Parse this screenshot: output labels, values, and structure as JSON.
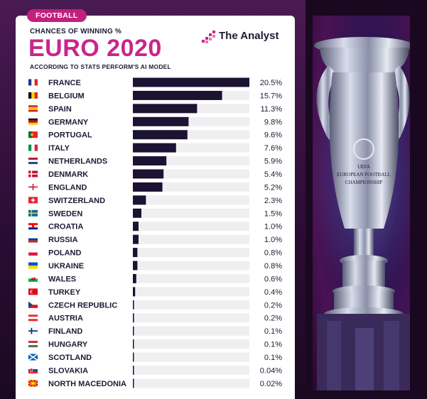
{
  "header": {
    "tag": "FOOTBALL",
    "kicker": "CHANCES OF WINNING %",
    "title": "EURO 2020",
    "subtitle": "ACCORDING TO STATS PERFORM'S AI MODEL",
    "brand": "The Analyst"
  },
  "trophy": {
    "line1": "UEFA",
    "line2": "EUROPEAN FOOTBALL",
    "line3": "CHAMPIONSHIP"
  },
  "colors": {
    "accent": "#c8268b",
    "bar": "#1c1333",
    "track": "#efeff1",
    "text": "#1c1b34"
  },
  "chart_data": {
    "type": "bar",
    "orientation": "horizontal",
    "categories": [
      "FRANCE",
      "BELGIUM",
      "SPAIN",
      "GERMANY",
      "PORTUGAL",
      "ITALY",
      "NETHERLANDS",
      "DENMARK",
      "ENGLAND",
      "SWITZERLAND",
      "SWEDEN",
      "CROATIA",
      "RUSSIA",
      "POLAND",
      "UKRAINE",
      "WALES",
      "TURKEY",
      "CZECH REPUBLIC",
      "AUSTRIA",
      "FINLAND",
      "HUNGARY",
      "SCOTLAND",
      "SLOVAKIA",
      "NORTH MACEDONIA"
    ],
    "values": [
      20.5,
      15.7,
      11.3,
      9.8,
      9.6,
      7.6,
      5.9,
      5.4,
      5.2,
      2.3,
      1.5,
      1.0,
      1.0,
      0.8,
      0.8,
      0.6,
      0.4,
      0.2,
      0.2,
      0.1,
      0.1,
      0.1,
      0.04,
      0.02
    ],
    "value_labels": [
      "20.5%",
      "15.7%",
      "11.3%",
      "9.8%",
      "9.6%",
      "7.6%",
      "5.9%",
      "5.4%",
      "5.2%",
      "2.3%",
      "1.5%",
      "1.0%",
      "1.0%",
      "0.8%",
      "0.8%",
      "0.6%",
      "0.4%",
      "0.2%",
      "0.2%",
      "0.1%",
      "0.1%",
      "0.1%",
      "0.04%",
      "0.02%"
    ],
    "flags": [
      "france-flag-icon",
      "belgium-flag-icon",
      "spain-flag-icon",
      "germany-flag-icon",
      "portugal-flag-icon",
      "italy-flag-icon",
      "netherlands-flag-icon",
      "denmark-flag-icon",
      "england-flag-icon",
      "switzerland-flag-icon",
      "sweden-flag-icon",
      "croatia-flag-icon",
      "russia-flag-icon",
      "poland-flag-icon",
      "ukraine-flag-icon",
      "wales-flag-icon",
      "turkey-flag-icon",
      "czech-republic-flag-icon",
      "austria-flag-icon",
      "finland-flag-icon",
      "hungary-flag-icon",
      "scotland-flag-icon",
      "slovakia-flag-icon",
      "north-macedonia-flag-icon"
    ],
    "xlim": [
      0,
      20.5
    ]
  }
}
